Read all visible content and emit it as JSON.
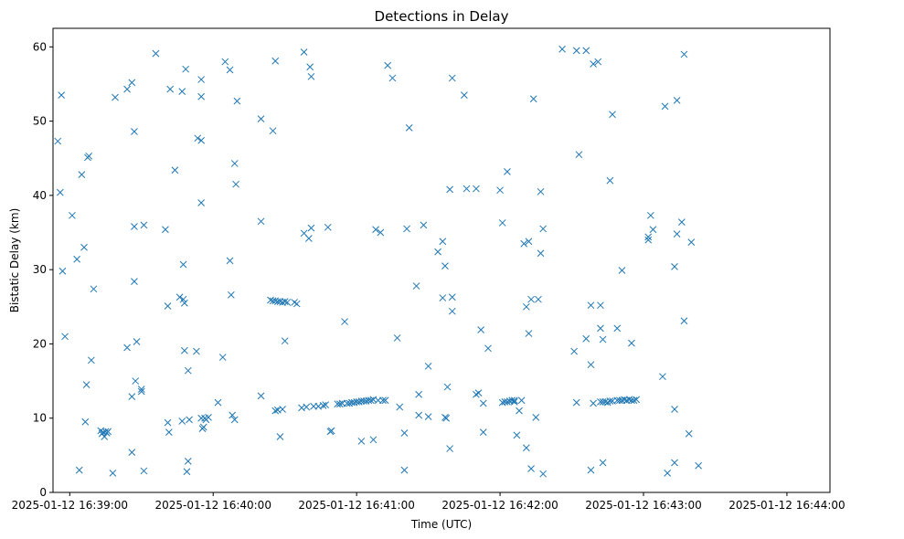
{
  "chart_data": {
    "type": "scatter",
    "title": "Detections in Delay",
    "xlabel": "Time (UTC)",
    "ylabel": "Bistatic Delay (km)",
    "marker": "x",
    "x_unit": "seconds since 2025-01-12 16:39:00",
    "xlim": [
      -7,
      318
    ],
    "ylim": [
      0,
      62.5
    ],
    "x_ticks": [
      {
        "value": 0,
        "label": "2025-01-12 16:39:00"
      },
      {
        "value": 60,
        "label": "2025-01-12 16:40:00"
      },
      {
        "value": 120,
        "label": "2025-01-12 16:41:00"
      },
      {
        "value": 180,
        "label": "2025-01-12 16:42:00"
      },
      {
        "value": 240,
        "label": "2025-01-12 16:43:00"
      },
      {
        "value": 300,
        "label": "2025-01-12 16:44:00"
      }
    ],
    "y_ticks": [
      0,
      10,
      20,
      30,
      40,
      50,
      60
    ],
    "color": "#1f77b4",
    "series": [
      {
        "name": "detections",
        "points": [
          [
            -5,
            47.3
          ],
          [
            -4,
            40.4
          ],
          [
            -3.5,
            53.5
          ],
          [
            -3,
            29.8
          ],
          [
            -2,
            21
          ],
          [
            3,
            31.4
          ],
          [
            4,
            3
          ],
          [
            1,
            37.3
          ],
          [
            5,
            42.8
          ],
          [
            6,
            33
          ],
          [
            6.5,
            9.5
          ],
          [
            7,
            14.5
          ],
          [
            7.5,
            45.1
          ],
          [
            8,
            45.3
          ],
          [
            9,
            17.8
          ],
          [
            10,
            27.4
          ],
          [
            13,
            8.3
          ],
          [
            13.5,
            7.9
          ],
          [
            14,
            8.1
          ],
          [
            14.5,
            7.5
          ],
          [
            15,
            8.2
          ],
          [
            15.5,
            8
          ],
          [
            16,
            8.2
          ],
          [
            18,
            2.6
          ],
          [
            19,
            53.2
          ],
          [
            24,
            54.3
          ],
          [
            26,
            55.2
          ],
          [
            24,
            19.5
          ],
          [
            26,
            12.9
          ],
          [
            26,
            5.4
          ],
          [
            27,
            48.6
          ],
          [
            27,
            35.8
          ],
          [
            27,
            28.4
          ],
          [
            27.5,
            15
          ],
          [
            28,
            20.3
          ],
          [
            30,
            13.6
          ],
          [
            30,
            13.9
          ],
          [
            31,
            2.9
          ],
          [
            31,
            36
          ],
          [
            36,
            59.1
          ],
          [
            40,
            35.4
          ],
          [
            41,
            25.1
          ],
          [
            41,
            9.4
          ],
          [
            41.5,
            8.1
          ],
          [
            42,
            54.3
          ],
          [
            44,
            43.4
          ],
          [
            46,
            26.3
          ],
          [
            47,
            54
          ],
          [
            47,
            9.6
          ],
          [
            47.5,
            30.7
          ],
          [
            47.5,
            26
          ],
          [
            48,
            19.1
          ],
          [
            48,
            25.5
          ],
          [
            48.5,
            57
          ],
          [
            49,
            2.8
          ],
          [
            49.5,
            4.2
          ],
          [
            49.5,
            16.4
          ],
          [
            50,
            9.8
          ],
          [
            53,
            19
          ],
          [
            53.5,
            47.7
          ],
          [
            55,
            53.3
          ],
          [
            55,
            55.6
          ],
          [
            55,
            39
          ],
          [
            55,
            47.4
          ],
          [
            55,
            10
          ],
          [
            55.5,
            8.6
          ],
          [
            56,
            8.8
          ],
          [
            56.5,
            10
          ],
          [
            57,
            9.8
          ],
          [
            58,
            10.1
          ],
          [
            62,
            12.1
          ],
          [
            64,
            18.2
          ],
          [
            65,
            58
          ],
          [
            67,
            56.9
          ],
          [
            67,
            31.2
          ],
          [
            67.5,
            26.6
          ],
          [
            68,
            10.4
          ],
          [
            69,
            9.8
          ],
          [
            69,
            44.3
          ],
          [
            69.5,
            41.5
          ],
          [
            70,
            52.7
          ],
          [
            80,
            50.3
          ],
          [
            80,
            36.5
          ],
          [
            80,
            13
          ],
          [
            84,
            25.9
          ],
          [
            85,
            25.8
          ],
          [
            86,
            25.8
          ],
          [
            87,
            25.7
          ],
          [
            88,
            25.7
          ],
          [
            89,
            25.6
          ],
          [
            90,
            25.7
          ],
          [
            91,
            25.6
          ],
          [
            85,
            48.7
          ],
          [
            86,
            58.1
          ],
          [
            86,
            11
          ],
          [
            87,
            11.1
          ],
          [
            88,
            7.5
          ],
          [
            89,
            11.2
          ],
          [
            90,
            20.4
          ],
          [
            94,
            25.6
          ],
          [
            95,
            25.4
          ],
          [
            97,
            11.4
          ],
          [
            98,
            34.9
          ],
          [
            98,
            59.3
          ],
          [
            99,
            11.5
          ],
          [
            100,
            34.2
          ],
          [
            100.5,
            57.3
          ],
          [
            101,
            56
          ],
          [
            101,
            35.6
          ],
          [
            102,
            11.6
          ],
          [
            104,
            11.6
          ],
          [
            106,
            11.7
          ],
          [
            107,
            11.8
          ],
          [
            108,
            35.7
          ],
          [
            109,
            8.2
          ],
          [
            109.5,
            8.3
          ],
          [
            112,
            11.9
          ],
          [
            113,
            11.9
          ],
          [
            114,
            12
          ],
          [
            115,
            23
          ],
          [
            116,
            12
          ],
          [
            117,
            12
          ],
          [
            118,
            12.1
          ],
          [
            119,
            12.1
          ],
          [
            120,
            12.2
          ],
          [
            121,
            12.2
          ],
          [
            122,
            12.3
          ],
          [
            122,
            6.9
          ],
          [
            123,
            12.3
          ],
          [
            124,
            12.3
          ],
          [
            125,
            12.4
          ],
          [
            126,
            12.4
          ],
          [
            127,
            7.1
          ],
          [
            127,
            12.5
          ],
          [
            128,
            35.4
          ],
          [
            129,
            12.4
          ],
          [
            130,
            35
          ],
          [
            131,
            12.4
          ],
          [
            132,
            12.4
          ],
          [
            133,
            57.5
          ],
          [
            135,
            55.8
          ],
          [
            137,
            20.8
          ],
          [
            138,
            11.5
          ],
          [
            140,
            8
          ],
          [
            140,
            3
          ],
          [
            142,
            49.1
          ],
          [
            141,
            35.5
          ],
          [
            145,
            27.8
          ],
          [
            146,
            10.4
          ],
          [
            146,
            13.2
          ],
          [
            148,
            36
          ],
          [
            150,
            17
          ],
          [
            150,
            10.2
          ],
          [
            154,
            32.4
          ],
          [
            156,
            33.8
          ],
          [
            156,
            26.2
          ],
          [
            157,
            10.1
          ],
          [
            157.5,
            10
          ],
          [
            157,
            30.5
          ],
          [
            158,
            14.2
          ],
          [
            159,
            5.9
          ],
          [
            160,
            55.8
          ],
          [
            159,
            40.8
          ],
          [
            160,
            24.4
          ],
          [
            160,
            26.3
          ],
          [
            165,
            53.5
          ],
          [
            166,
            40.9
          ],
          [
            170,
            40.9
          ],
          [
            171,
            13.4
          ],
          [
            170,
            13.2
          ],
          [
            172,
            21.9
          ],
          [
            173,
            8.1
          ],
          [
            173,
            12
          ],
          [
            175,
            19.4
          ],
          [
            180,
            40.7
          ],
          [
            181,
            36.3
          ],
          [
            181,
            12.1
          ],
          [
            182,
            12.2
          ],
          [
            183,
            43.2
          ],
          [
            183,
            12.2
          ],
          [
            184,
            12.3
          ],
          [
            185,
            12.4
          ],
          [
            186,
            12.4
          ],
          [
            186,
            12.2
          ],
          [
            187,
            7.7
          ],
          [
            188,
            11
          ],
          [
            189,
            12.4
          ],
          [
            190,
            33.5
          ],
          [
            191,
            6
          ],
          [
            191,
            25
          ],
          [
            192,
            21.4
          ],
          [
            192,
            33.8
          ],
          [
            193,
            26
          ],
          [
            193,
            3.2
          ],
          [
            194,
            53
          ],
          [
            195,
            10.1
          ],
          [
            196,
            26
          ],
          [
            197,
            32.2
          ],
          [
            197,
            40.5
          ],
          [
            198,
            35.5
          ],
          [
            198,
            2.5
          ],
          [
            206,
            59.7
          ],
          [
            211,
            19
          ],
          [
            212,
            59.5
          ],
          [
            212,
            12.1
          ],
          [
            213,
            45.5
          ],
          [
            216,
            20.7
          ],
          [
            216,
            59.5
          ],
          [
            218,
            17.2
          ],
          [
            218,
            3
          ],
          [
            218,
            25.2
          ],
          [
            219,
            12
          ],
          [
            219,
            57.7
          ],
          [
            221,
            58
          ],
          [
            222,
            25.2
          ],
          [
            222,
            22.1
          ],
          [
            222,
            12.2
          ],
          [
            223,
            20.6
          ],
          [
            223,
            12.2
          ],
          [
            223,
            4
          ],
          [
            224,
            12.2
          ],
          [
            225,
            12.1
          ],
          [
            226,
            42
          ],
          [
            226,
            12.3
          ],
          [
            227,
            50.9
          ],
          [
            227,
            12.3
          ],
          [
            229,
            22.1
          ],
          [
            229,
            12.4
          ],
          [
            230,
            12.4
          ],
          [
            231,
            12.4
          ],
          [
            231,
            29.9
          ],
          [
            232,
            12.5
          ],
          [
            233,
            12.4
          ],
          [
            234,
            12.5
          ],
          [
            235,
            12.4
          ],
          [
            235,
            20.1
          ],
          [
            236,
            12.4
          ],
          [
            237,
            12.5
          ],
          [
            242,
            34.4
          ],
          [
            242,
            34
          ],
          [
            243,
            37.3
          ],
          [
            244,
            35.4
          ],
          [
            248,
            15.6
          ],
          [
            249,
            52
          ],
          [
            250,
            2.6
          ],
          [
            253,
            11.2
          ],
          [
            253,
            4
          ],
          [
            253,
            30.4
          ],
          [
            254,
            34.8
          ],
          [
            254,
            52.8
          ],
          [
            256,
            36.4
          ],
          [
            257,
            23.1
          ],
          [
            257,
            59
          ],
          [
            259,
            7.9
          ],
          [
            260,
            33.7
          ],
          [
            263,
            3.6
          ]
        ]
      }
    ]
  }
}
